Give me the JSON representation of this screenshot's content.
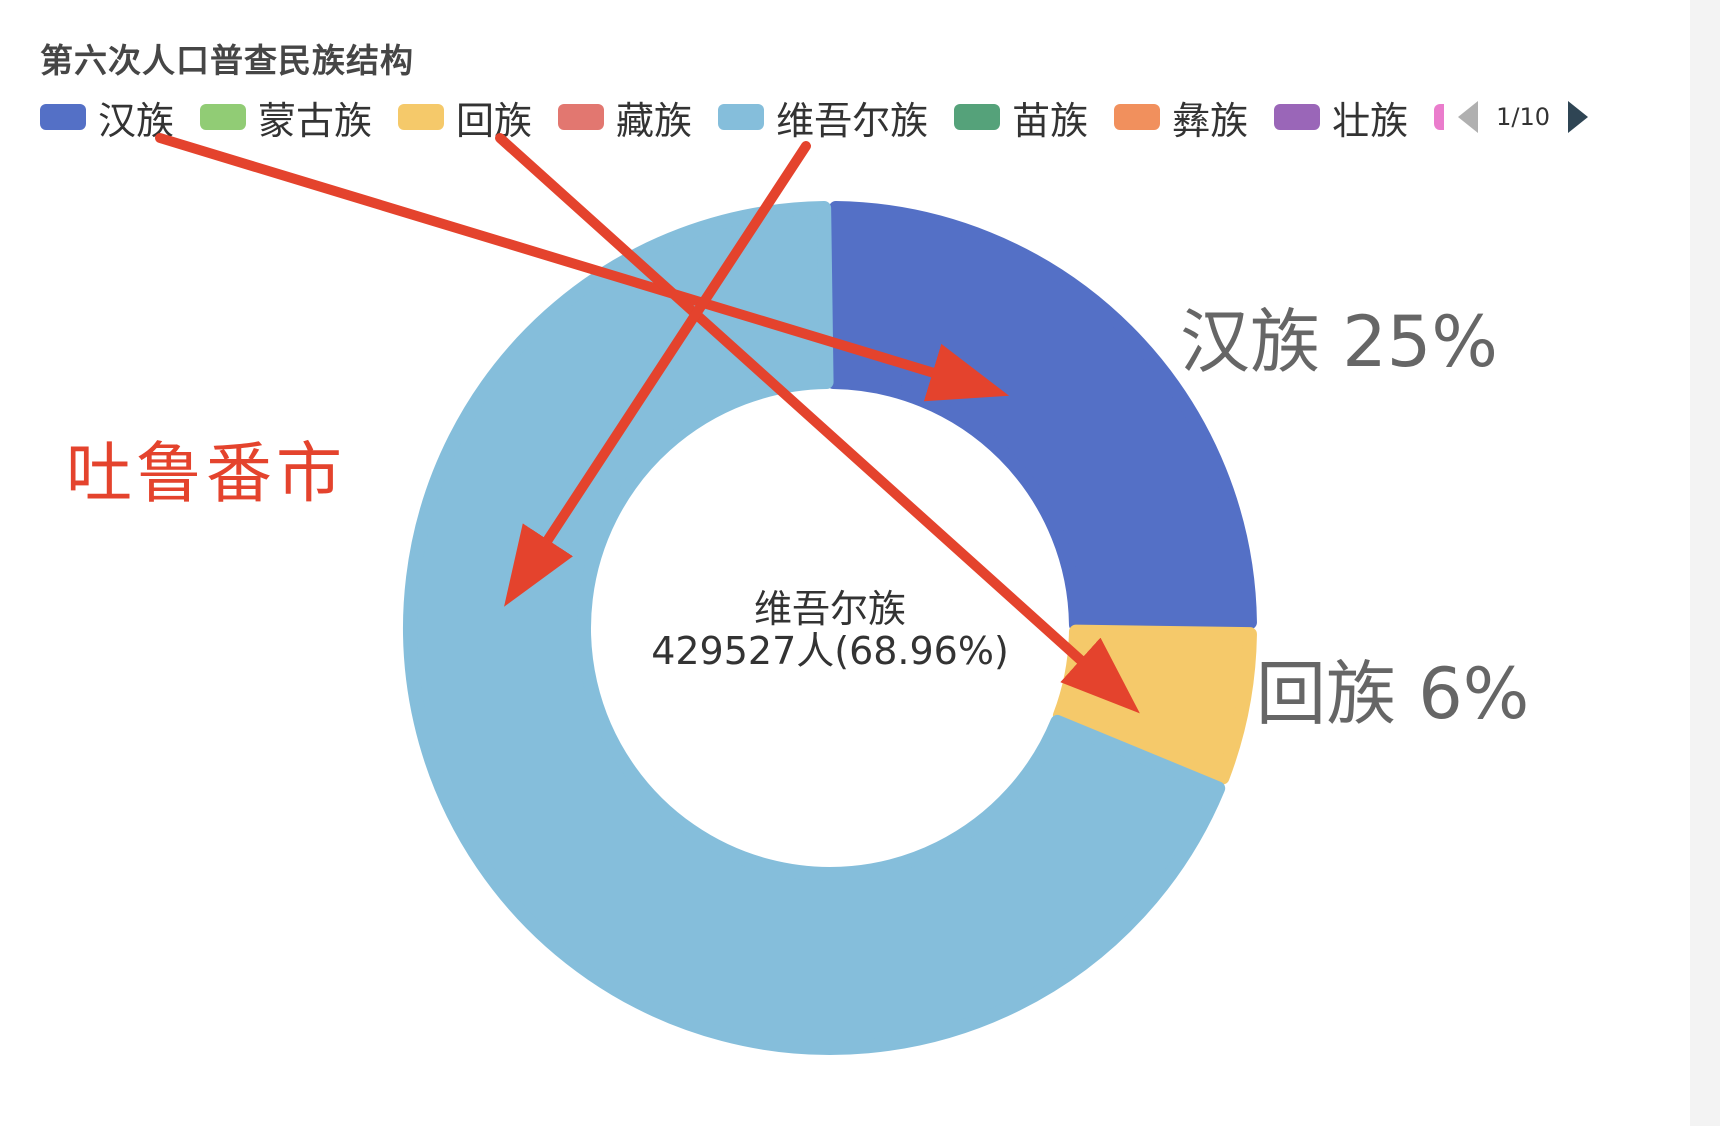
{
  "chart_data": {
    "type": "pie",
    "title": "第六次人口普查民族结构",
    "legend": {
      "items": [
        {
          "name": "汉族",
          "color": "#5470c6"
        },
        {
          "name": "蒙古族",
          "color": "#91cc75"
        },
        {
          "name": "回族",
          "color": "#f5c96a"
        },
        {
          "name": "藏族",
          "color": "#e27770"
        },
        {
          "name": "维吾尔族",
          "color": "#85bedb"
        },
        {
          "name": "苗族",
          "color": "#55a27a"
        },
        {
          "name": "彝族",
          "color": "#f1905d"
        },
        {
          "name": "壮族",
          "color": "#9a66b8"
        }
      ],
      "clipped_color": "#ea7ccc",
      "page": "1/10",
      "placement": "top-left"
    },
    "slices": [
      {
        "name": "汉族",
        "percent": 25,
        "label": "汉族 25%",
        "color": "#5470c6"
      },
      {
        "name": "回族",
        "percent": 6,
        "label": "回族 6%",
        "color": "#f5c96a"
      },
      {
        "name": "维吾尔族",
        "percent": 68.96,
        "value": 429527,
        "color": "#85bedb"
      }
    ],
    "center_label": {
      "line1": "维吾尔族",
      "line2": "429527人(68.96%)"
    }
  },
  "annotation": {
    "city_text": "吐鲁番市",
    "arrow_color": "#e4432d"
  }
}
